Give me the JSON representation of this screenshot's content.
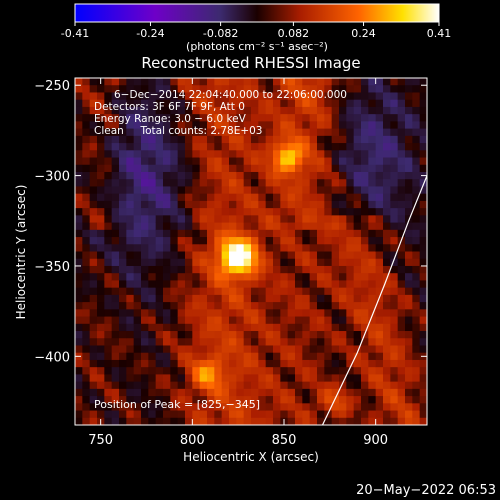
{
  "colorbar": {
    "ticks": [
      -0.41,
      -0.24,
      -0.082,
      0.082,
      0.24,
      0.41
    ],
    "tick_labels": [
      "-0.41",
      "-0.24",
      "-0.082",
      "0.082",
      "0.24",
      "0.41"
    ],
    "min": -0.41,
    "max": 0.41,
    "unit_label": "(photons cm⁻² s⁻¹ asec⁻²)"
  },
  "chart_data": {
    "type": "heatmap",
    "title": "Reconstructed RHESSI Image",
    "xlabel": "Heliocentric X (arcsec)",
    "ylabel": "Heliocentric Y (arcsec)",
    "xlim": [
      736,
      928
    ],
    "ylim": [
      -438,
      -246
    ],
    "xticks": [
      750,
      800,
      850,
      900
    ],
    "yticks": [
      -250,
      -300,
      -350,
      -400
    ],
    "ytick_labels": [
      "−250",
      "−300",
      "−350",
      "−400"
    ],
    "peak": [
      825,
      -345
    ],
    "sources": [
      {
        "x": 825,
        "y": -345,
        "value": 0.41
      },
      {
        "x": 852,
        "y": -290,
        "value": 0.24
      },
      {
        "x": 808,
        "y": -410,
        "value": 0.16
      },
      {
        "x": 878,
        "y": -425,
        "value": 0.12
      }
    ],
    "limb_curve": [
      [
        871,
        -438
      ],
      [
        890,
        -398
      ],
      [
        905,
        -360
      ],
      [
        918,
        -325
      ],
      [
        928,
        -300
      ]
    ],
    "annotations": [
      "6−Dec−2014 22:04:40.000 to 22:06:00.000",
      "Detectors: 3F 6F 7F 9F, Att 0",
      "Energy Range: 3.0 − 6.0 keV",
      "Clean     Total counts: 2.78E+03"
    ],
    "peak_label": "Position of Peak = [825,−345]"
  },
  "timestamp": "20−May−2022 06:53",
  "colors": {
    "background": "#000000",
    "colormap": [
      "#0000ff",
      "#6e00c8",
      "#3c2a6e",
      "#000000",
      "#aa1e00",
      "#ff6400",
      "#ffe000",
      "#ffffff"
    ]
  }
}
